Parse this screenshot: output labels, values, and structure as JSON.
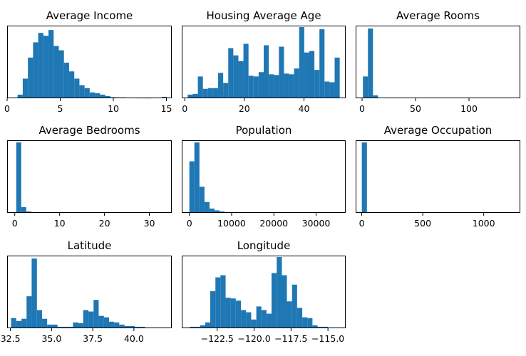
{
  "chart_data": [
    {
      "type": "bar",
      "title": "Average Income",
      "xlabel": "",
      "ylabel": "",
      "xlim": [
        0,
        15.5
      ],
      "ylim": [
        0,
        1.0
      ],
      "xticks": [
        {
          "value": 0,
          "label": "0"
        },
        {
          "value": 5,
          "label": "5"
        },
        {
          "value": 10,
          "label": "10"
        },
        {
          "value": 15,
          "label": "15"
        }
      ],
      "bin_edges": [
        0.5,
        0.985,
        1.47,
        1.955,
        2.44,
        2.925,
        3.41,
        3.895,
        4.38,
        4.865,
        5.35,
        5.835,
        6.32,
        6.805,
        7.29,
        7.775,
        8.26,
        8.745,
        9.23,
        9.715,
        10.2,
        10.685,
        11.17,
        11.655,
        12.14,
        12.625,
        13.11,
        13.595,
        14.08,
        14.565,
        15.05
      ],
      "counts": [
        0.01,
        0.05,
        0.27,
        0.56,
        0.77,
        0.9,
        0.86,
        0.94,
        0.72,
        0.66,
        0.49,
        0.37,
        0.27,
        0.18,
        0.14,
        0.08,
        0.07,
        0.05,
        0.03,
        0.015,
        0.012,
        0.012,
        0.008,
        0.005,
        0.004,
        0.004,
        0.003,
        0.0,
        0.0,
        0.02
      ],
      "grid": false
    },
    {
      "type": "bar",
      "title": "Housing Average Age",
      "xlabel": "",
      "ylabel": "",
      "xlim": [
        -1,
        54
      ],
      "ylim": [
        0,
        1.0
      ],
      "xticks": [
        {
          "value": 0,
          "label": "0"
        },
        {
          "value": 20,
          "label": "20"
        },
        {
          "value": 40,
          "label": "40"
        }
      ],
      "bin_edges": [
        1,
        2.7,
        4.4,
        6.1,
        7.8,
        9.5,
        11.2,
        12.9,
        14.6,
        16.3,
        18.0,
        19.7,
        21.4,
        23.1,
        24.8,
        26.5,
        28.2,
        29.9,
        31.6,
        33.3,
        35.0,
        36.7,
        38.4,
        40.1,
        41.8,
        43.5,
        45.2,
        46.9,
        48.6,
        50.3,
        52.0
      ],
      "counts": [
        0.05,
        0.06,
        0.3,
        0.13,
        0.14,
        0.14,
        0.35,
        0.21,
        0.69,
        0.59,
        0.51,
        0.75,
        0.31,
        0.3,
        0.36,
        0.73,
        0.33,
        0.32,
        0.71,
        0.34,
        0.33,
        0.41,
        0.98,
        0.63,
        0.65,
        0.39,
        0.95,
        0.23,
        0.22,
        0.56
      ],
      "grid": false
    },
    {
      "type": "bar",
      "title": "Average Rooms",
      "xlabel": "",
      "ylabel": "",
      "xlim": [
        -6,
        148
      ],
      "ylim": [
        0,
        1.0
      ],
      "xticks": [
        {
          "value": 0,
          "label": "0"
        },
        {
          "value": 50,
          "label": "50"
        },
        {
          "value": 100,
          "label": "100"
        }
      ],
      "bin_edges": [
        0.8,
        5.5,
        10.2,
        14.9
      ],
      "counts": [
        0.3,
        0.96,
        0.04
      ],
      "grid": false
    },
    {
      "type": "bar",
      "title": "Average Bedrooms",
      "xlabel": "",
      "ylabel": "",
      "xlim": [
        -1.7,
        35
      ],
      "ylim": [
        0,
        1.0
      ],
      "xticks": [
        {
          "value": 0,
          "label": "0"
        },
        {
          "value": 10,
          "label": "10"
        },
        {
          "value": 20,
          "label": "20"
        },
        {
          "value": 30,
          "label": "30"
        }
      ],
      "bin_edges": [
        0.33,
        1.44,
        2.55,
        3.66,
        4.77
      ],
      "counts": [
        0.97,
        0.08,
        0.02,
        0.01
      ],
      "grid": false
    },
    {
      "type": "bar",
      "title": "Population",
      "xlabel": "",
      "ylabel": "",
      "xlim": [
        -1800,
        37000
      ],
      "ylim": [
        0,
        1.0
      ],
      "xticks": [
        {
          "value": 0,
          "label": "0"
        },
        {
          "value": 10000,
          "label": "10000"
        },
        {
          "value": 20000,
          "label": "20000"
        },
        {
          "value": 30000,
          "label": "30000"
        }
      ],
      "bin_edges": [
        3,
        1195,
        2387,
        3579,
        4771,
        5963,
        7155,
        8347,
        9539,
        10731,
        11923
      ],
      "counts": [
        0.71,
        0.97,
        0.36,
        0.15,
        0.06,
        0.035,
        0.02,
        0.012,
        0.008,
        0.005
      ],
      "grid": false
    },
    {
      "type": "bar",
      "title": "Average Occupation",
      "xlabel": "",
      "ylabel": "",
      "xlim": [
        -50,
        1300
      ],
      "ylim": [
        0,
        1.0
      ],
      "xticks": [
        {
          "value": 0,
          "label": "0"
        },
        {
          "value": 500,
          "label": "500"
        },
        {
          "value": 1000,
          "label": "1000"
        }
      ],
      "bin_edges": [
        0.7,
        42.4
      ],
      "counts": [
        0.97
      ],
      "grid": false
    },
    {
      "type": "bar",
      "title": "Latitude",
      "xlabel": "",
      "ylabel": "",
      "xlim": [
        32.3,
        42.3
      ],
      "ylim": [
        0,
        1.0
      ],
      "xticks": [
        {
          "value": 32.5,
          "label": "32.5"
        },
        {
          "value": 35.0,
          "label": "35.0"
        },
        {
          "value": 37.5,
          "label": "37.5"
        },
        {
          "value": 40.0,
          "label": "40.0"
        }
      ],
      "bin_edges": [
        32.54,
        32.85,
        33.17,
        33.48,
        33.79,
        34.11,
        34.42,
        34.73,
        35.05,
        35.36,
        35.67,
        35.98,
        36.3,
        36.61,
        36.92,
        37.24,
        37.55,
        37.86,
        38.18,
        38.49,
        38.8,
        39.11,
        39.43,
        39.74,
        40.05,
        40.37,
        40.68,
        40.99,
        41.3,
        41.62,
        41.95
      ],
      "counts": [
        0.14,
        0.1,
        0.13,
        0.44,
        0.96,
        0.25,
        0.13,
        0.05,
        0.05,
        0.02,
        0.02,
        0.02,
        0.08,
        0.07,
        0.25,
        0.23,
        0.39,
        0.17,
        0.15,
        0.09,
        0.08,
        0.05,
        0.03,
        0.03,
        0.02,
        0.02,
        0.005,
        0.0,
        0.0,
        0.0
      ],
      "grid": false
    },
    {
      "type": "bar",
      "title": "Longitude",
      "xlabel": "",
      "ylabel": "",
      "xlim": [
        -124.9,
        -113.8
      ],
      "ylim": [
        0,
        1.0
      ],
      "xticks": [
        {
          "value": -122.5,
          "label": "−122.5"
        },
        {
          "value": -120.0,
          "label": "−120.0"
        },
        {
          "value": -117.5,
          "label": "−117.5"
        },
        {
          "value": -115.0,
          "label": "−115.0"
        }
      ],
      "bin_edges": [
        -124.35,
        -124.01,
        -123.66,
        -123.31,
        -122.97,
        -122.62,
        -122.28,
        -121.93,
        -121.58,
        -121.24,
        -120.89,
        -120.55,
        -120.2,
        -119.85,
        -119.51,
        -119.16,
        -118.82,
        -118.47,
        -118.12,
        -117.78,
        -117.43,
        -117.09,
        -116.74,
        -116.39,
        -116.05,
        -115.7,
        -115.36,
        -115.01,
        -114.66,
        -114.31
      ],
      "counts": [
        0.02,
        0.02,
        0.04,
        0.08,
        0.51,
        0.7,
        0.73,
        0.42,
        0.41,
        0.38,
        0.25,
        0.22,
        0.12,
        0.3,
        0.25,
        0.2,
        0.76,
        0.98,
        0.73,
        0.37,
        0.6,
        0.28,
        0.15,
        0.14,
        0.04,
        0.02,
        0.02,
        0.01,
        0.0
      ],
      "grid": false
    }
  ],
  "colors": {
    "bar": "#1f77b4",
    "axes": "#000000",
    "background": "#ffffff"
  }
}
